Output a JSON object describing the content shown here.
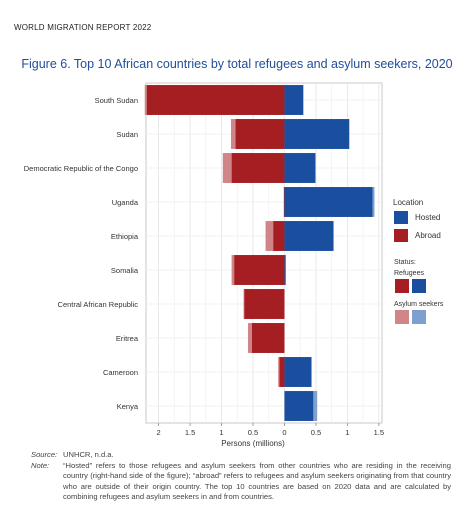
{
  "header": "WORLD MIGRATION REPORT 2022",
  "title": "Figure 6. Top 10 African countries by total refugees and asylum seekers, 2020",
  "legend": {
    "location_title": "Location",
    "hosted": "Hosted",
    "abroad": "Abroad",
    "status_title": "Status:",
    "refugees": "Refugees",
    "asylum_seekers": "Asylum seekers"
  },
  "colors": {
    "abroad_refugees": "#a51e22",
    "abroad_asylum": "#d08589",
    "hosted_refugees": "#1a4fa0",
    "hosted_asylum": "#7f9fd0"
  },
  "chart_data": {
    "type": "bar",
    "orientation": "horizontal-diverging",
    "xlabel": "Persons (millions)",
    "xlim": [
      -2.2,
      1.55
    ],
    "xticks": [
      -2,
      -1.5,
      -1,
      -0.5,
      0,
      0.5,
      1,
      1.5
    ],
    "xtick_labels": [
      "2",
      "1.5",
      "1",
      "0.5",
      "0",
      "0.5",
      "1",
      "1.5"
    ],
    "categories": [
      "South Sudan",
      "Sudan",
      "Democratic Republic of the Congo",
      "Uganda",
      "Ethiopia",
      "Somalia",
      "Central African Republic",
      "Eritrea",
      "Cameroon",
      "Kenya"
    ],
    "series": [
      {
        "name": "Abroad",
        "status": "Refugees",
        "values": [
          2.19,
          0.78,
          0.84,
          0.01,
          0.18,
          0.8,
          0.64,
          0.52,
          0.08,
          0.0
        ]
      },
      {
        "name": "Abroad",
        "status": "Asylum seekers",
        "values": [
          0.03,
          0.07,
          0.14,
          0.0,
          0.12,
          0.04,
          0.01,
          0.06,
          0.02,
          0.0
        ]
      },
      {
        "name": "Hosted",
        "status": "Refugees",
        "values": [
          0.3,
          1.03,
          0.49,
          1.4,
          0.78,
          0.02,
          0.0,
          0.0,
          0.43,
          0.46
        ]
      },
      {
        "name": "Hosted",
        "status": "Asylum seekers",
        "values": [
          0.0,
          0.0,
          0.01,
          0.03,
          0.0,
          0.0,
          0.0,
          0.0,
          0.0,
          0.06
        ]
      }
    ]
  },
  "notes": {
    "source_key": "Source:",
    "source": "UNHCR, n.d.a.",
    "note_key": "Note:",
    "note": "“Hosted” refers to those refugees and asylum seekers from other countries who are residing in the receiving country (right-hand side of the figure); “abroad” refers to refugees and asylum seekers originating from that country who are outside of their origin country. The top 10 countries are based on 2020 data and are calculated by combining refugees and asylum seekers in and from countries."
  }
}
